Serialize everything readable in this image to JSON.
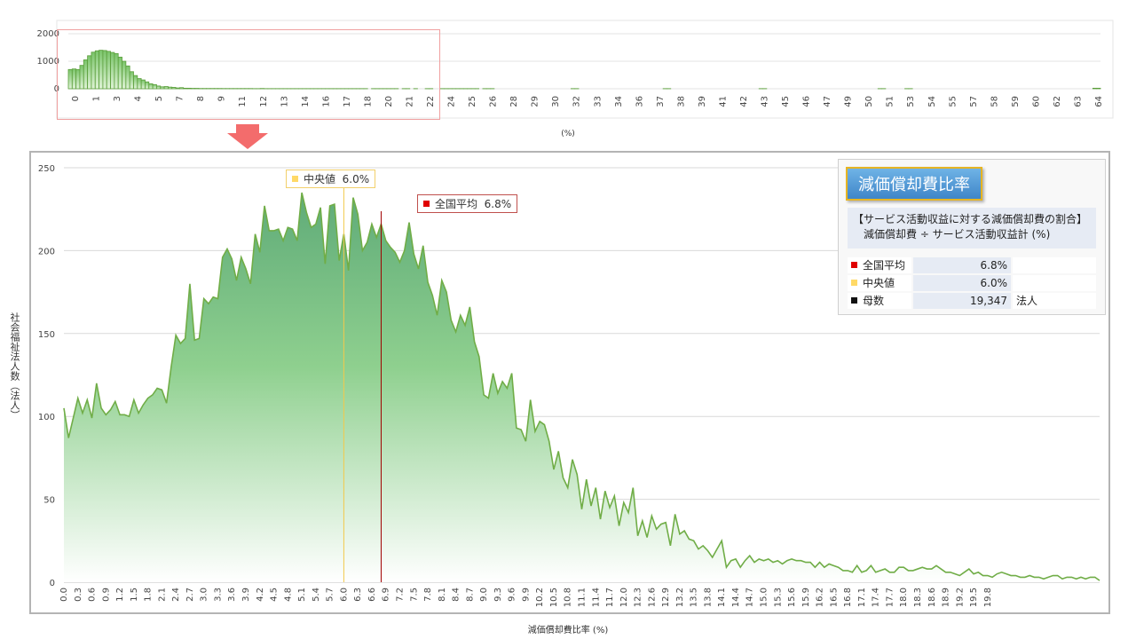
{
  "colors": {
    "bar_fill_top": "#7ac46a",
    "bar_fill_bottom": "#d9f1cf",
    "bar_stroke": "#5a9e3a",
    "area_line": "#70ad47",
    "area_top": "#6bb380",
    "area_bottom": "#ffffff",
    "mean": "#c00000",
    "median": "#ffd966",
    "count": "#111111",
    "grid": "#d9d9d9",
    "zoom_rect": "#f0a0a0",
    "arrow": "#f25c5c"
  },
  "panel": {
    "title": "減価償却費比率",
    "definition_line1": "【サービス活動収益に対する減価償却費の割合】",
    "definition_line2": "減価償却費 ÷ サービス活動収益計 (%)",
    "stats": [
      {
        "label": "全国平均",
        "value": "6.8%",
        "unit": "",
        "color": "#e00000"
      },
      {
        "label": "中央値",
        "value": "6.0%",
        "unit": "",
        "color": "#ffd966"
      },
      {
        "label": "母数",
        "value": "19,347",
        "unit": "法人",
        "color": "#111111"
      }
    ]
  },
  "callouts": {
    "median": {
      "label": "中央値",
      "value": "6.0%"
    },
    "mean": {
      "label": "全国平均",
      "value": "6.8%"
    }
  },
  "chart_data": [
    {
      "type": "bar",
      "title": "",
      "xlabel": "(%)",
      "ylabel": "",
      "ylim": [
        0,
        2000
      ],
      "yticks": [
        0,
        1000,
        2000
      ],
      "x_tick_labels": [
        "0",
        "1",
        "3",
        "4",
        "5",
        "7",
        "8",
        "9",
        "11",
        "12",
        "13",
        "14",
        "16",
        "17",
        "18",
        "20",
        "21",
        "22",
        "24",
        "25",
        "26",
        "28",
        "29",
        "30",
        "32",
        "33",
        "34",
        "36",
        "37",
        "38",
        "39",
        "41",
        "42",
        "43",
        "45",
        "46",
        "47",
        "49",
        "50",
        "51",
        "53",
        "54",
        "55",
        "57",
        "58",
        "59",
        "60",
        "62",
        "63",
        "64"
      ],
      "values": [
        700,
        720,
        700,
        850,
        1050,
        1200,
        1330,
        1380,
        1400,
        1390,
        1360,
        1320,
        1280,
        1150,
        1000,
        830,
        620,
        480,
        370,
        320,
        250,
        180,
        150,
        100,
        70,
        80,
        60,
        50,
        30,
        40,
        20,
        20,
        15,
        15,
        10,
        10,
        10,
        10,
        10,
        10,
        8,
        8,
        8,
        8,
        8,
        8,
        8,
        8,
        5,
        5,
        10,
        5,
        5,
        5,
        5,
        5,
        5,
        5,
        5,
        5,
        5,
        5,
        5,
        5,
        5,
        5,
        5,
        5,
        5,
        5,
        5,
        5,
        5,
        5,
        5,
        5,
        5,
        5,
        0,
        5,
        5,
        5,
        5,
        5,
        5,
        5,
        0,
        5,
        5,
        0,
        5,
        0,
        0,
        5,
        5,
        0,
        0,
        5,
        5,
        5,
        5,
        5,
        5,
        5,
        5,
        5,
        5,
        0,
        5,
        5,
        5,
        0,
        0,
        0,
        0,
        0,
        0,
        0,
        0,
        0,
        0,
        0,
        0,
        0,
        0,
        0,
        0,
        0,
        0,
        0,
        0,
        5,
        5,
        0,
        0,
        0,
        0,
        0,
        0,
        0,
        0,
        0,
        0,
        0,
        0,
        0,
        0,
        0,
        0,
        0,
        0,
        0,
        0,
        0,
        0,
        5,
        5,
        0,
        0,
        0,
        0,
        0,
        0,
        0,
        0,
        0,
        0,
        0,
        0,
        0,
        0,
        0,
        0,
        0,
        0,
        0,
        0,
        0,
        0,
        0,
        5,
        5,
        0,
        0,
        0,
        0,
        0,
        0,
        0,
        0,
        0,
        0,
        0,
        0,
        0,
        0,
        0,
        0,
        0,
        0,
        0,
        0,
        0,
        0,
        0,
        0,
        0,
        0,
        0,
        0,
        0,
        5,
        5,
        0,
        0,
        0,
        0,
        0,
        5,
        5,
        0,
        0,
        0,
        0,
        0,
        0,
        0,
        0,
        0,
        0,
        0,
        0,
        0,
        0,
        0,
        0,
        0,
        0,
        0,
        0,
        0,
        0,
        0,
        0,
        0,
        0,
        0,
        0,
        0,
        0,
        0,
        0,
        0,
        0,
        0,
        0,
        0,
        0,
        0,
        0,
        0,
        0,
        0,
        0,
        0,
        0,
        0,
        20,
        20
      ]
    },
    {
      "type": "area",
      "title": "",
      "xlabel": "減価償却費比率 (%)",
      "ylabel": "社会福祉法人数（法人）",
      "ylim": [
        0,
        250
      ],
      "yticks": [
        0,
        50,
        100,
        150,
        200,
        250
      ],
      "x_step": 0.1,
      "x_start": 0.0,
      "x_tick_labels": [
        "0.0",
        "0.3",
        "0.6",
        "0.9",
        "1.2",
        "1.5",
        "1.8",
        "2.1",
        "2.4",
        "2.7",
        "3.0",
        "3.3",
        "3.6",
        "3.9",
        "4.2",
        "4.5",
        "4.8",
        "5.1",
        "5.4",
        "5.7",
        "6.0",
        "6.3",
        "6.6",
        "6.9",
        "7.2",
        "7.5",
        "7.8",
        "8.1",
        "8.4",
        "8.7",
        "9.0",
        "9.3",
        "9.6",
        "9.9",
        "10.2",
        "10.5",
        "10.8",
        "11.1",
        "11.4",
        "11.7",
        "12.0",
        "12.3",
        "12.6",
        "12.9",
        "13.2",
        "13.5",
        "13.8",
        "14.1",
        "14.4",
        "14.7",
        "15.0",
        "15.3",
        "15.6",
        "15.9",
        "16.2",
        "16.5",
        "16.8",
        "17.1",
        "17.4",
        "17.7",
        "18.0",
        "18.3",
        "18.6",
        "18.9",
        "19.2",
        "19.5",
        "19.8"
      ],
      "values": [
        105,
        87,
        99,
        111,
        102,
        110,
        99,
        120,
        105,
        101,
        104,
        109,
        101,
        101,
        100,
        110,
        102,
        107,
        111,
        113,
        117,
        116,
        108,
        130,
        149,
        144,
        147,
        180,
        146,
        147,
        171,
        168,
        172,
        171,
        196,
        201,
        195,
        182,
        196,
        189,
        180,
        210,
        199,
        227,
        212,
        212,
        213,
        206,
        214,
        213,
        206,
        235,
        223,
        214,
        216,
        226,
        192,
        227,
        228,
        194,
        210,
        188,
        232,
        222,
        200,
        205,
        216,
        208,
        216,
        206,
        202,
        199,
        193,
        200,
        217,
        198,
        189,
        203,
        181,
        173,
        161,
        182,
        175,
        158,
        151,
        161,
        155,
        166,
        145,
        136,
        113,
        111,
        126,
        114,
        121,
        117,
        126,
        93,
        92,
        85,
        110,
        91,
        97,
        95,
        85,
        68,
        79,
        63,
        57,
        74,
        65,
        44,
        62,
        46,
        57,
        38,
        55,
        45,
        52,
        34,
        48,
        42,
        57,
        28,
        37,
        27,
        40,
        32,
        35,
        36,
        22,
        41,
        29,
        31,
        26,
        25,
        20,
        22,
        19,
        15,
        20,
        25,
        9,
        13,
        14,
        9,
        13,
        16,
        12,
        14,
        13,
        14,
        12,
        13,
        11,
        13,
        14,
        13,
        13,
        12,
        12,
        9,
        12,
        9,
        11,
        10,
        9,
        7,
        7,
        6,
        10,
        6,
        7,
        10,
        6,
        7,
        8,
        6,
        6,
        9,
        9,
        7,
        7,
        8,
        9,
        8,
        8,
        10,
        8,
        6,
        6,
        5,
        4,
        6,
        8,
        5,
        6,
        4,
        4,
        3,
        5,
        6,
        5,
        4,
        4,
        3,
        3,
        4,
        3,
        3,
        2,
        3,
        4,
        4,
        2,
        3,
        3,
        2,
        3,
        2,
        3,
        3,
        1
      ]
    }
  ]
}
